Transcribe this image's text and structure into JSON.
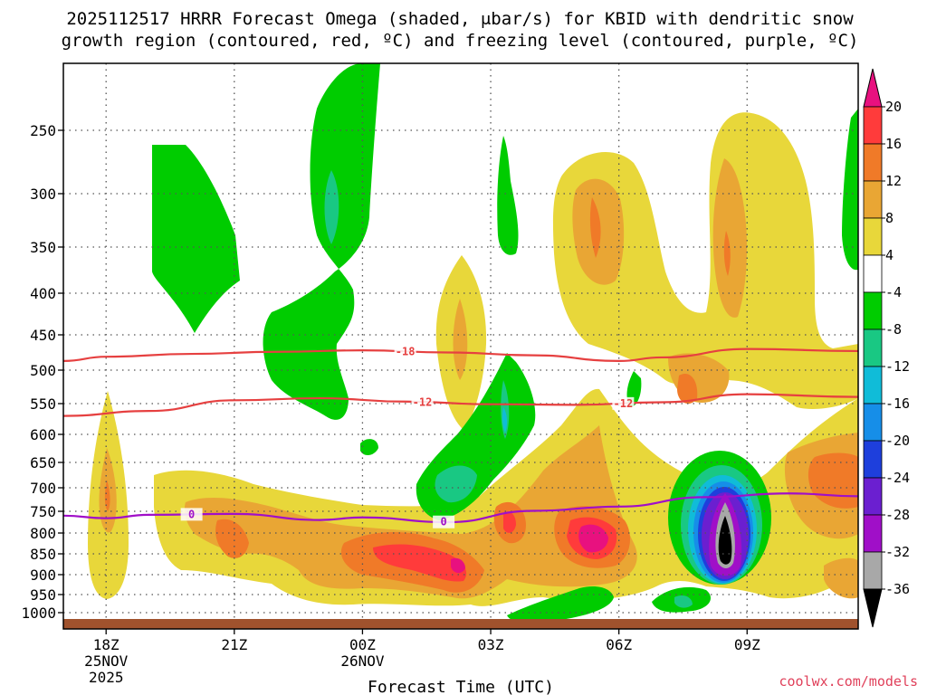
{
  "chart_data": {
    "type": "heatmap",
    "title_line1": "2025112517 HRRR Forecast Omega (shaded, μbar/s) for KBID with dendritic snow",
    "title_line2": "growth region (contoured, red, ºC) and freezing level (contoured, purple, ºC)",
    "xlabel": "Forecast Time (UTC)",
    "credit": "coolwx.com/models",
    "x_ticks": [
      {
        "hour": 0,
        "label": "18Z",
        "date": "25NOV",
        "year": "2025"
      },
      {
        "hour": 3,
        "label": "21Z",
        "date": "",
        "year": ""
      },
      {
        "hour": 6,
        "label": "00Z",
        "date": "26NOV",
        "year": ""
      },
      {
        "hour": 9,
        "label": "03Z",
        "date": "",
        "year": ""
      },
      {
        "hour": 12,
        "label": "06Z",
        "date": "",
        "year": ""
      },
      {
        "hour": 15,
        "label": "09Z",
        "date": "",
        "year": ""
      }
    ],
    "x_range_hours": [
      -1,
      17.6
    ],
    "y_ticks_hpa": [
      "250",
      "300",
      "350",
      "400",
      "450",
      "500",
      "550",
      "600",
      "650",
      "700",
      "750",
      "800",
      "850",
      "900",
      "950",
      "1000"
    ],
    "colorbar": {
      "labels": [
        "20",
        "16",
        "12",
        "8",
        "4",
        "-4",
        "-8",
        "-12",
        "-16",
        "-20",
        "-24",
        "-28",
        "-32",
        "-36"
      ],
      "colors": [
        "#e8117f",
        "#ff3b3b",
        "#f07a28",
        "#e9a634",
        "#e8d73a",
        "#ffffff",
        "#00cc00",
        "#19c883",
        "#10bcd8",
        "#168ee8",
        "#1e3fdc",
        "#6b1fd0",
        "#a00fc8",
        "#a8a8a8",
        "#000000"
      ]
    },
    "contours": [
      {
        "name": "dgz-minus18",
        "label": "-18",
        "color": "#e64040",
        "points": [
          [
            -1,
            487
          ],
          [
            0,
            481
          ],
          [
            2,
            477
          ],
          [
            4,
            474
          ],
          [
            6,
            472
          ],
          [
            8,
            475
          ],
          [
            10,
            479
          ],
          [
            12,
            487
          ],
          [
            13,
            482
          ],
          [
            15,
            470
          ],
          [
            17.6,
            473
          ]
        ]
      },
      {
        "name": "dgz-minus12",
        "label": "-12",
        "color": "#e64040",
        "points": [
          [
            -1,
            570
          ],
          [
            1,
            562
          ],
          [
            3,
            545
          ],
          [
            5,
            542
          ],
          [
            7,
            547
          ],
          [
            9,
            551
          ],
          [
            11,
            552
          ],
          [
            13,
            548
          ],
          [
            15,
            536
          ],
          [
            17.6,
            540
          ]
        ]
      },
      {
        "name": "freezing-level",
        "label": "0",
        "color": "#a00fc8",
        "points": [
          [
            -1,
            760
          ],
          [
            0,
            766
          ],
          [
            1,
            758
          ],
          [
            3,
            756
          ],
          [
            5,
            770
          ],
          [
            6,
            764
          ],
          [
            8,
            775
          ],
          [
            10,
            749
          ],
          [
            12,
            740
          ],
          [
            14,
            720
          ],
          [
            16,
            712
          ],
          [
            17.6,
            718
          ]
        ]
      }
    ]
  }
}
